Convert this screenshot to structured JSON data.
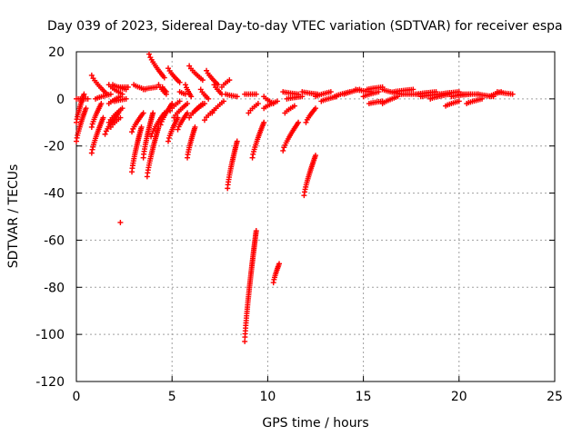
{
  "chart_data": {
    "type": "scatter",
    "title": "Day 039 of 2023, Sidereal Day-to-day VTEC variation (SDTVAR) for receiver espa",
    "xlabel": "GPS time / hours",
    "ylabel": "SDTVAR / TECUs",
    "xlim": [
      0,
      25
    ],
    "ylim": [
      -120,
      20
    ],
    "xticks": [
      "0",
      "5",
      "10",
      "15",
      "20",
      "25"
    ],
    "yticks": [
      "20",
      "0",
      "-20",
      "-40",
      "-60",
      "-80",
      "-100",
      "-120"
    ],
    "grid": true,
    "marker": "+",
    "color": "#ff0000",
    "segments": [
      {
        "x0": 0.0,
        "y0": -18,
        "x1": 0.5,
        "y1": -4
      },
      {
        "x0": 0.0,
        "y0": -10,
        "x1": 0.4,
        "y1": 2
      },
      {
        "x0": 0.0,
        "y0": 0,
        "x1": 0.6,
        "y1": 0
      },
      {
        "x0": 0.8,
        "y0": -23,
        "x1": 1.4,
        "y1": -8
      },
      {
        "x0": 0.8,
        "y0": -12,
        "x1": 1.3,
        "y1": -2
      },
      {
        "x0": 0.8,
        "y0": 10,
        "x1": 1.6,
        "y1": 2
      },
      {
        "x0": 1.0,
        "y0": 0,
        "x1": 1.8,
        "y1": 2
      },
      {
        "x0": 1.5,
        "y0": -15,
        "x1": 2.2,
        "y1": -6
      },
      {
        "x0": 1.7,
        "y0": 6,
        "x1": 2.4,
        "y1": 2
      },
      {
        "x0": 1.7,
        "y0": -2,
        "x1": 2.3,
        "y1": 1
      },
      {
        "x0": 1.8,
        "y0": -12,
        "x1": 2.3,
        "y1": -8
      },
      {
        "x0": 1.9,
        "y0": 6,
        "x1": 2.6,
        "y1": 4
      },
      {
        "x0": 2.0,
        "y0": -1,
        "x1": 2.6,
        "y1": 0
      },
      {
        "x0": 1.7,
        "y0": -10,
        "x1": 2.4,
        "y1": -4
      },
      {
        "x0": 2.2,
        "y0": 5,
        "x1": 2.7,
        "y1": 5
      },
      {
        "x0": 2.9,
        "y0": -31,
        "x1": 3.4,
        "y1": -12
      },
      {
        "x0": 2.9,
        "y0": -14,
        "x1": 3.5,
        "y1": -6
      },
      {
        "x0": 3.0,
        "y0": 6,
        "x1": 3.6,
        "y1": 4
      },
      {
        "x0": 3.5,
        "y0": -25,
        "x1": 4.0,
        "y1": -6
      },
      {
        "x0": 3.5,
        "y0": 4,
        "x1": 4.2,
        "y1": 5
      },
      {
        "x0": 3.7,
        "y0": -33,
        "x1": 4.3,
        "y1": -12
      },
      {
        "x0": 3.8,
        "y0": 19,
        "x1": 4.6,
        "y1": 9
      },
      {
        "x0": 3.9,
        "y0": -16,
        "x1": 4.6,
        "y1": -6
      },
      {
        "x0": 4.3,
        "y0": 6,
        "x1": 4.7,
        "y1": 2
      },
      {
        "x0": 4.4,
        "y0": -11,
        "x1": 5.0,
        "y1": -2
      },
      {
        "x0": 4.5,
        "y0": 5,
        "x1": 4.7,
        "y1": 3
      },
      {
        "x0": 4.8,
        "y0": 13,
        "x1": 5.4,
        "y1": 7
      },
      {
        "x0": 4.9,
        "y0": -5,
        "x1": 5.4,
        "y1": -1
      },
      {
        "x0": 4.8,
        "y0": -18,
        "x1": 5.3,
        "y1": -8
      },
      {
        "x0": 5.1,
        "y0": -8,
        "x1": 5.8,
        "y1": -2
      },
      {
        "x0": 5.3,
        "y0": -13,
        "x1": 5.8,
        "y1": -6
      },
      {
        "x0": 5.4,
        "y0": 3,
        "x1": 5.7,
        "y1": 2
      },
      {
        "x0": 5.7,
        "y0": 6,
        "x1": 6.0,
        "y1": 1
      },
      {
        "x0": 5.8,
        "y0": -25,
        "x1": 6.2,
        "y1": -12
      },
      {
        "x0": 5.9,
        "y0": 14,
        "x1": 6.6,
        "y1": 8
      },
      {
        "x0": 5.9,
        "y0": -8,
        "x1": 6.6,
        "y1": -2
      },
      {
        "x0": 6.1,
        "y0": -6,
        "x1": 6.7,
        "y1": -2
      },
      {
        "x0": 6.5,
        "y0": 4,
        "x1": 6.9,
        "y1": 0
      },
      {
        "x0": 6.8,
        "y0": 12,
        "x1": 7.4,
        "y1": 6
      },
      {
        "x0": 6.7,
        "y0": -9,
        "x1": 7.3,
        "y1": -4
      },
      {
        "x0": 7.1,
        "y0": -6,
        "x1": 7.7,
        "y1": -1
      },
      {
        "x0": 7.2,
        "y0": 6,
        "x1": 7.6,
        "y1": 2
      },
      {
        "x0": 7.6,
        "y0": 5,
        "x1": 8.0,
        "y1": 8
      },
      {
        "x0": 7.8,
        "y0": 2,
        "x1": 8.4,
        "y1": 1
      },
      {
        "x0": 7.9,
        "y0": -38,
        "x1": 8.4,
        "y1": -18
      },
      {
        "x0": 8.8,
        "y0": 2,
        "x1": 9.4,
        "y1": 2
      },
      {
        "x0": 8.8,
        "y0": -103,
        "x1": 9.4,
        "y1": -56
      },
      {
        "x0": 9.0,
        "y0": -6,
        "x1": 9.5,
        "y1": -2
      },
      {
        "x0": 9.2,
        "y0": -25,
        "x1": 9.8,
        "y1": -10
      },
      {
        "x0": 9.8,
        "y0": 1,
        "x1": 10.3,
        "y1": -2
      },
      {
        "x0": 9.8,
        "y0": -4,
        "x1": 10.5,
        "y1": -1
      },
      {
        "x0": 10.3,
        "y0": -78,
        "x1": 10.6,
        "y1": -70
      },
      {
        "x0": 10.8,
        "y0": 3,
        "x1": 11.6,
        "y1": 2
      },
      {
        "x0": 10.8,
        "y0": -22,
        "x1": 11.6,
        "y1": -10
      },
      {
        "x0": 10.9,
        "y0": -6,
        "x1": 11.4,
        "y1": -3
      },
      {
        "x0": 11.0,
        "y0": 0,
        "x1": 11.8,
        "y1": 1
      },
      {
        "x0": 11.9,
        "y0": -41,
        "x1": 12.5,
        "y1": -24
      },
      {
        "x0": 11.8,
        "y0": 3,
        "x1": 12.6,
        "y1": 2
      },
      {
        "x0": 12.0,
        "y0": -10,
        "x1": 12.5,
        "y1": -4
      },
      {
        "x0": 12.5,
        "y0": 1,
        "x1": 13.3,
        "y1": 3
      },
      {
        "x0": 12.8,
        "y0": -1,
        "x1": 13.6,
        "y1": 1
      },
      {
        "x0": 13.5,
        "y0": 1,
        "x1": 14.3,
        "y1": 3
      },
      {
        "x0": 14.0,
        "y0": 2,
        "x1": 14.8,
        "y1": 4
      },
      {
        "x0": 14.6,
        "y0": 4,
        "x1": 15.4,
        "y1": 3
      },
      {
        "x0": 15.0,
        "y0": 1,
        "x1": 15.8,
        "y1": 3
      },
      {
        "x0": 15.2,
        "y0": 4,
        "x1": 16.0,
        "y1": 5
      },
      {
        "x0": 15.3,
        "y0": -2,
        "x1": 16.0,
        "y1": -1
      },
      {
        "x0": 16.0,
        "y0": 4,
        "x1": 17.0,
        "y1": 2
      },
      {
        "x0": 16.0,
        "y0": -2,
        "x1": 16.8,
        "y1": 1
      },
      {
        "x0": 16.6,
        "y0": 3,
        "x1": 17.6,
        "y1": 4
      },
      {
        "x0": 17.0,
        "y0": 2,
        "x1": 18.0,
        "y1": 2
      },
      {
        "x0": 17.8,
        "y0": 2,
        "x1": 18.8,
        "y1": 3
      },
      {
        "x0": 18.0,
        "y0": 1,
        "x1": 19.0,
        "y1": 2
      },
      {
        "x0": 18.5,
        "y0": 0,
        "x1": 19.5,
        "y1": 2
      },
      {
        "x0": 19.0,
        "y0": 2,
        "x1": 20.0,
        "y1": 3
      },
      {
        "x0": 19.3,
        "y0": -3,
        "x1": 20.0,
        "y1": -1
      },
      {
        "x0": 19.6,
        "y0": 1,
        "x1": 20.6,
        "y1": 2
      },
      {
        "x0": 20.0,
        "y0": 2,
        "x1": 21.0,
        "y1": 2
      },
      {
        "x0": 20.4,
        "y0": -2,
        "x1": 21.2,
        "y1": 0
      },
      {
        "x0": 21.0,
        "y0": 2,
        "x1": 21.8,
        "y1": 1
      },
      {
        "x0": 21.6,
        "y0": 1,
        "x1": 22.2,
        "y1": 3
      },
      {
        "x0": 22.0,
        "y0": 3,
        "x1": 22.8,
        "y1": 2
      }
    ],
    "isolated_points": [
      {
        "x": 2.3,
        "y": -52.5
      }
    ]
  }
}
